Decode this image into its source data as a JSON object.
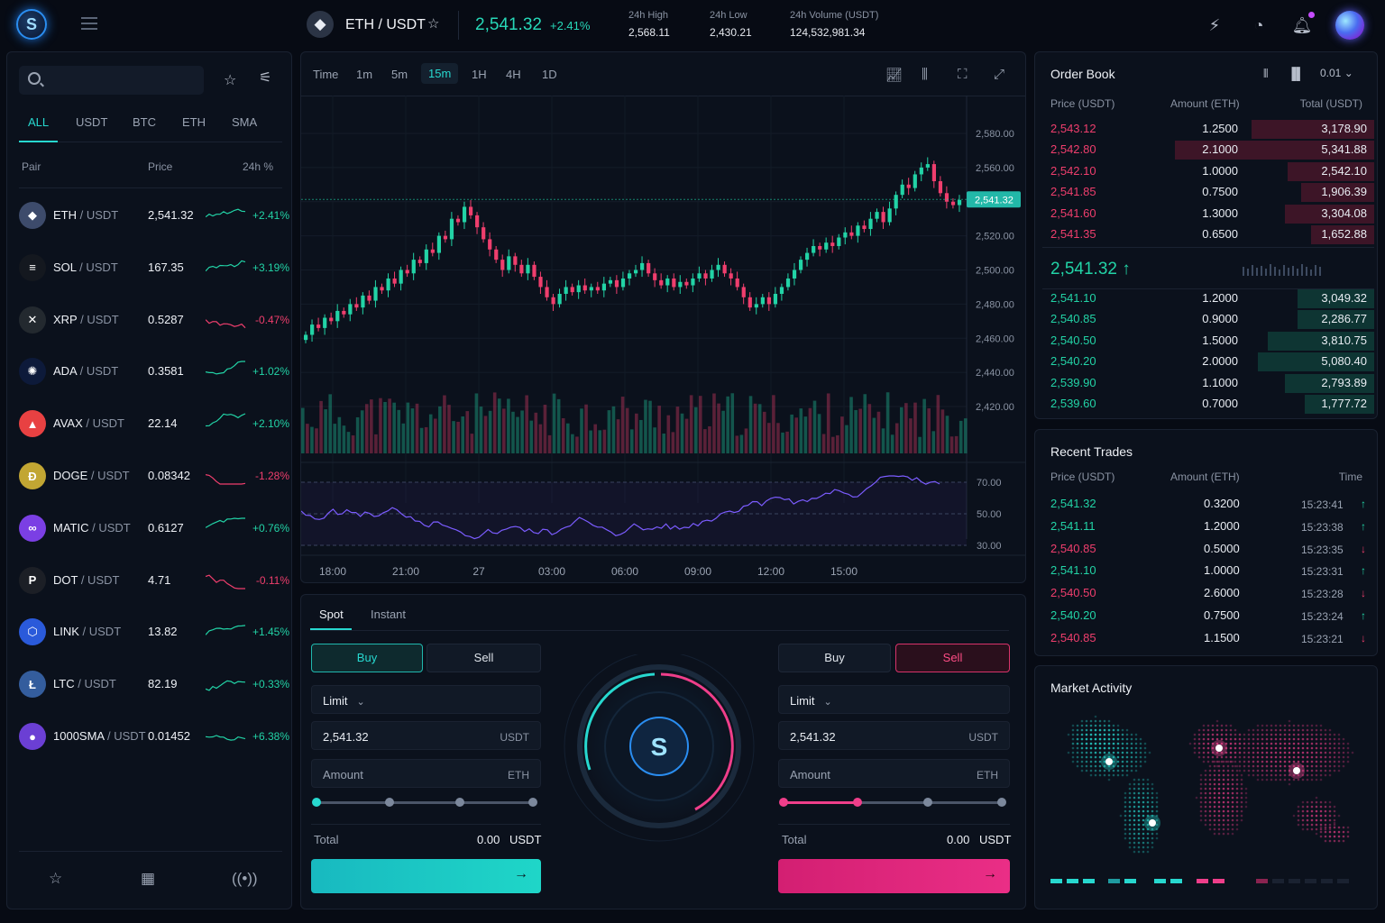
{
  "header": {
    "pair": "ETH / USDT",
    "price": "2,541.32",
    "change": "+2.41%",
    "stats": [
      {
        "label": "24h High",
        "value": "2,568.11"
      },
      {
        "label": "24h Low",
        "value": "2,430.21"
      },
      {
        "label": "24h Volume (USDT)",
        "value": "124,532,981.34"
      }
    ],
    "icons": [
      "logo-icon",
      "menu-icon",
      "ethereum-icon",
      "star-icon",
      "lightning-icon",
      "pie-chart-icon",
      "bell-icon",
      "avatar"
    ]
  },
  "markets": {
    "tabs": [
      "ALL",
      "USDT",
      "BTC",
      "ETH",
      "SMA"
    ],
    "active_tab": "ALL",
    "headers": {
      "pair": "Pair",
      "price": "Price",
      "change": "24h %"
    },
    "rows": [
      {
        "base": "ETH",
        "quote": " / USDT",
        "price": "2,541.32",
        "change": "+2.41%",
        "up": true,
        "color": "#3d4b6b",
        "glyph": "◆"
      },
      {
        "base": "SOL",
        "quote": " / USDT",
        "price": "167.35",
        "change": "+3.19%",
        "up": true,
        "color": "#14181f",
        "glyph": "≡"
      },
      {
        "base": "XRP",
        "quote": " / USDT",
        "price": "0.5287",
        "change": "-0.47%",
        "up": false,
        "color": "#23292f",
        "glyph": "✕"
      },
      {
        "base": "ADA",
        "quote": " / USDT",
        "price": "0.3581",
        "change": "+1.02%",
        "up": true,
        "color": "#0d1a3a",
        "glyph": "✺"
      },
      {
        "base": "AVAX",
        "quote": " / USDT",
        "price": "22.14",
        "change": "+2.10%",
        "up": true,
        "color": "#e84142",
        "glyph": "▲"
      },
      {
        "base": "DOGE",
        "quote": " / USDT",
        "price": "0.08342",
        "change": "-1.28%",
        "up": false,
        "color": "#c2a633",
        "glyph": "Ð"
      },
      {
        "base": "MATIC",
        "quote": " / USDT",
        "price": "0.6127",
        "change": "+0.76%",
        "up": true,
        "color": "#7b3fe4",
        "glyph": "∞"
      },
      {
        "base": "DOT",
        "quote": " / USDT",
        "price": "4.71",
        "change": "-0.11%",
        "up": false,
        "color": "#1c1f26",
        "glyph": "P"
      },
      {
        "base": "LINK",
        "quote": " / USDT",
        "price": "13.82",
        "change": "+1.45%",
        "up": true,
        "color": "#2a5ada",
        "glyph": "⬡"
      },
      {
        "base": "LTC",
        "quote": " / USDT",
        "price": "82.19",
        "change": "+0.33%",
        "up": true,
        "color": "#345d9d",
        "glyph": "Ł"
      },
      {
        "base": "1000SMA",
        "quote": " / USDT",
        "price": "0.01452",
        "change": "+6.38%",
        "up": true,
        "color": "#6b3fd4",
        "glyph": "●"
      }
    ]
  },
  "chart": {
    "timeframes": [
      "Time",
      "1m",
      "5m",
      "15m",
      "1H",
      "4H",
      "1D"
    ],
    "active_timeframe": "15m",
    "last_price_label": "2,541.32",
    "colors": {
      "up": "#22d3a6",
      "down": "#ef3e6d",
      "rsi": "#7b5cff"
    }
  },
  "chart_data": {
    "type": "candlestick",
    "title": "",
    "y_ticks": [
      "2,580.00",
      "2,560.00",
      "2,540.00",
      "2,520.00",
      "2,500.00",
      "2,480.00",
      "2,460.00",
      "2,440.00",
      "2,420.00"
    ],
    "ylim": [
      2420,
      2580
    ],
    "x_ticks": [
      "18:00",
      "21:00",
      "27",
      "03:00",
      "06:00",
      "09:00",
      "12:00",
      "15:00"
    ],
    "rsi_ticks": [
      "70.00",
      "50.00",
      "30.00"
    ],
    "closes": [
      2462,
      2468,
      2466,
      2472,
      2470,
      2476,
      2474,
      2480,
      2478,
      2485,
      2482,
      2490,
      2488,
      2495,
      2492,
      2500,
      2498,
      2506,
      2504,
      2512,
      2510,
      2520,
      2518,
      2530,
      2528,
      2537,
      2532,
      2525,
      2518,
      2512,
      2506,
      2500,
      2508,
      2503,
      2498,
      2503,
      2496,
      2490,
      2484,
      2480,
      2486,
      2490,
      2487,
      2491,
      2488,
      2490,
      2488,
      2492,
      2494,
      2490,
      2495,
      2498,
      2500,
      2504,
      2498,
      2494,
      2491,
      2495,
      2490,
      2493,
      2491,
      2495,
      2498,
      2495,
      2500,
      2503,
      2498,
      2495,
      2490,
      2484,
      2478,
      2480,
      2484,
      2480,
      2486,
      2490,
      2495,
      2500,
      2506,
      2510,
      2514,
      2512,
      2516,
      2514,
      2519,
      2522,
      2520,
      2526,
      2524,
      2530,
      2534,
      2528,
      2536,
      2544,
      2550,
      2548,
      2556,
      2560,
      2562,
      2552,
      2545,
      2540,
      2538,
      2541
    ]
  },
  "trade": {
    "tabs": [
      "Spot",
      "Instant"
    ],
    "buy": {
      "buy_label": "Buy",
      "sell_label": "Sell",
      "order_type": "Limit",
      "price": "2,541.32",
      "price_unit": "USDT",
      "amount_label": "Amount",
      "amount_unit": "ETH",
      "total_label": "Total",
      "total_value": "0.00",
      "total_unit": "USDT"
    },
    "sell": {
      "buy_label": "Buy",
      "sell_label": "Sell",
      "order_type": "Limit",
      "price": "2,541.32",
      "price_unit": "USDT",
      "amount_label": "Amount",
      "amount_unit": "ETH",
      "total_label": "Total",
      "total_value": "0.00",
      "total_unit": "USDT"
    }
  },
  "orderbook": {
    "title": "Order Book",
    "precision": "0.01",
    "headers": {
      "price": "Price (USDT)",
      "amount": "Amount (ETH)",
      "total": "Total (USDT)"
    },
    "asks": [
      {
        "price": "2,543.12",
        "amount": "1.2500",
        "total": "3,178.90",
        "depth": 0.37
      },
      {
        "price": "2,542.80",
        "amount": "2.1000",
        "total": "5,341.88",
        "depth": 0.6
      },
      {
        "price": "2,542.10",
        "amount": "1.0000",
        "total": "2,542.10",
        "depth": 0.26
      },
      {
        "price": "2,541.85",
        "amount": "0.7500",
        "total": "1,906.39",
        "depth": 0.22
      },
      {
        "price": "2,541.60",
        "amount": "1.3000",
        "total": "3,304.08",
        "depth": 0.27
      },
      {
        "price": "2,541.35",
        "amount": "0.6500",
        "total": "1,652.88",
        "depth": 0.19
      }
    ],
    "mid_price": "2,541.32 ↑",
    "bids": [
      {
        "price": "2,541.10",
        "amount": "1.2000",
        "total": "3,049.32",
        "depth": 0.23
      },
      {
        "price": "2,540.85",
        "amount": "0.9000",
        "total": "2,286.77",
        "depth": 0.23
      },
      {
        "price": "2,540.50",
        "amount": "1.5000",
        "total": "3,810.75",
        "depth": 0.32
      },
      {
        "price": "2,540.20",
        "amount": "2.0000",
        "total": "5,080.40",
        "depth": 0.35
      },
      {
        "price": "2,539.90",
        "amount": "1.1000",
        "total": "2,793.89",
        "depth": 0.27
      },
      {
        "price": "2,539.60",
        "amount": "0.7000",
        "total": "1,777.72",
        "depth": 0.21
      }
    ]
  },
  "recent_trades": {
    "title": "Recent Trades",
    "headers": {
      "price": "Price (USDT)",
      "amount": "Amount (ETH)",
      "time": "Time"
    },
    "rows": [
      {
        "price": "2,541.32",
        "amount": "0.3200",
        "time": "15:23:41",
        "up": true
      },
      {
        "price": "2,541.11",
        "amount": "1.2000",
        "time": "15:23:38",
        "up": true
      },
      {
        "price": "2,540.85",
        "amount": "0.5000",
        "time": "15:23:35",
        "up": false
      },
      {
        "price": "2,541.10",
        "amount": "1.0000",
        "time": "15:23:31",
        "up": true
      },
      {
        "price": "2,540.50",
        "amount": "2.6000",
        "time": "15:23:28",
        "up": false
      },
      {
        "price": "2,540.20",
        "amount": "0.7500",
        "time": "15:23:24",
        "up": true
      },
      {
        "price": "2,540.85",
        "amount": "1.1500",
        "time": "15:23:21",
        "up": false
      }
    ]
  },
  "activity": {
    "title": "Market Activity"
  }
}
